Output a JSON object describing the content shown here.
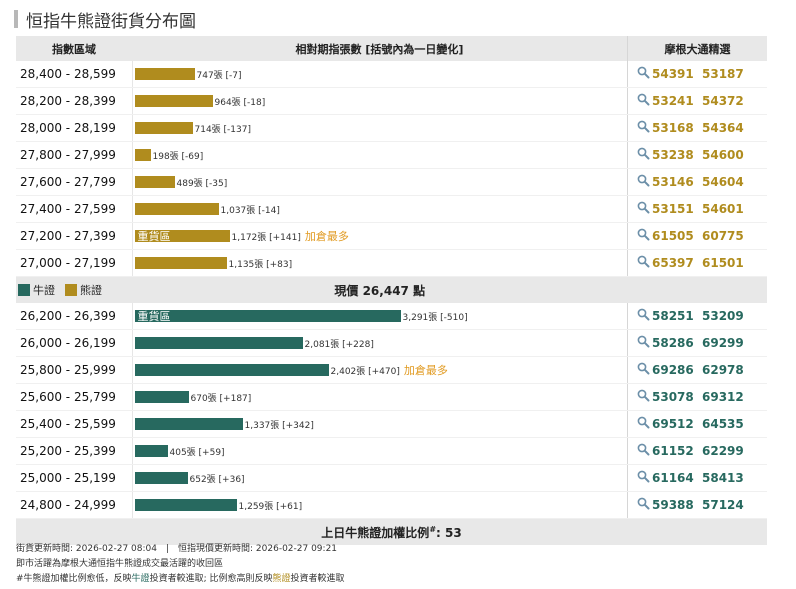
{
  "title": "恒指牛熊證街貨分布圖",
  "headers": {
    "range": "指數區域",
    "count": "相對期指張數 [括號內為一日變化]",
    "best": "摩根大通精選"
  },
  "bear_rows": [
    {
      "range": "28,400 - 28,599",
      "value": 747,
      "label": "747張 [-7]",
      "heavy": "",
      "add": "",
      "codes": [
        "54391",
        "53187"
      ]
    },
    {
      "range": "28,200 - 28,399",
      "value": 964,
      "label": "964張 [-18]",
      "heavy": "",
      "add": "",
      "codes": [
        "53241",
        "54372"
      ]
    },
    {
      "range": "28,000 - 28,199",
      "value": 714,
      "label": "714張 [-137]",
      "heavy": "",
      "add": "",
      "codes": [
        "53168",
        "54364"
      ]
    },
    {
      "range": "27,800 - 27,999",
      "value": 198,
      "label": "198張 [-69]",
      "heavy": "",
      "add": "",
      "codes": [
        "53238",
        "54600"
      ]
    },
    {
      "range": "27,600 - 27,799",
      "value": 489,
      "label": "489張 [-35]",
      "heavy": "",
      "add": "",
      "codes": [
        "53146",
        "54604"
      ]
    },
    {
      "range": "27,400 - 27,599",
      "value": 1037,
      "label": "1,037張 [-14]",
      "heavy": "",
      "add": "",
      "codes": [
        "53151",
        "54601"
      ]
    },
    {
      "range": "27,200 - 27,399",
      "value": 1172,
      "label": "1,172張 [+141]",
      "heavy": "重貨區",
      "add": "加倉最多",
      "codes": [
        "61505",
        "60775"
      ]
    },
    {
      "range": "27,000 - 27,199",
      "value": 1135,
      "label": "1,135張 [+83]",
      "heavy": "",
      "add": "",
      "codes": [
        "65397",
        "61501"
      ]
    }
  ],
  "legend": {
    "bull": "牛證",
    "bear": "熊證",
    "bull_color": "#27695f",
    "bear_color": "#b08c1e"
  },
  "current_price": "現價 26,447 點",
  "bull_rows": [
    {
      "range": "26,200 - 26,399",
      "value": 3291,
      "label": "3,291張 [-510]",
      "heavy": "重貨區",
      "add": "",
      "codes": [
        "58251",
        "53209"
      ]
    },
    {
      "range": "26,000 - 26,199",
      "value": 2081,
      "label": "2,081張 [+228]",
      "heavy": "",
      "add": "",
      "codes": [
        "58286",
        "69299"
      ]
    },
    {
      "range": "25,800 - 25,999",
      "value": 2402,
      "label": "2,402張 [+470]",
      "heavy": "",
      "add": "加倉最多",
      "codes": [
        "69286",
        "62978"
      ]
    },
    {
      "range": "25,600 - 25,799",
      "value": 670,
      "label": "670張 [+187]",
      "heavy": "",
      "add": "",
      "codes": [
        "53078",
        "69312"
      ]
    },
    {
      "range": "25,400 - 25,599",
      "value": 1337,
      "label": "1,337張 [+342]",
      "heavy": "",
      "add": "",
      "codes": [
        "69512",
        "64535"
      ]
    },
    {
      "range": "25,200 - 25,399",
      "value": 405,
      "label": "405張 [+59]",
      "heavy": "",
      "add": "",
      "codes": [
        "61152",
        "62299"
      ]
    },
    {
      "range": "25,000 - 25,199",
      "value": 652,
      "label": "652張 [+36]",
      "heavy": "",
      "add": "",
      "codes": [
        "61164",
        "58413"
      ]
    },
    {
      "range": "24,800 - 24,999",
      "value": 1259,
      "label": "1,259張 [+61]",
      "heavy": "",
      "add": "",
      "codes": [
        "59388",
        "57124"
      ]
    }
  ],
  "footer": {
    "ratio_label": "上日牛熊證加權比例",
    "ratio_mark": "#",
    "ratio_value": ": 53"
  },
  "notes": {
    "line1": "街貨更新時間: 2026-02-27 08:04　|　恒指現價更新時間: 2026-02-27 09:21",
    "line2": "即市活躍為摩根大通恒指牛熊證成交最活躍的收回區",
    "line3_a": "#牛熊證加權比例愈低，反映",
    "line3_bull": "牛證",
    "line3_b": "投資者較進取; 比例愈高則反映",
    "line3_bear": "熊證",
    "line3_c": "投資者較進取"
  }
}
